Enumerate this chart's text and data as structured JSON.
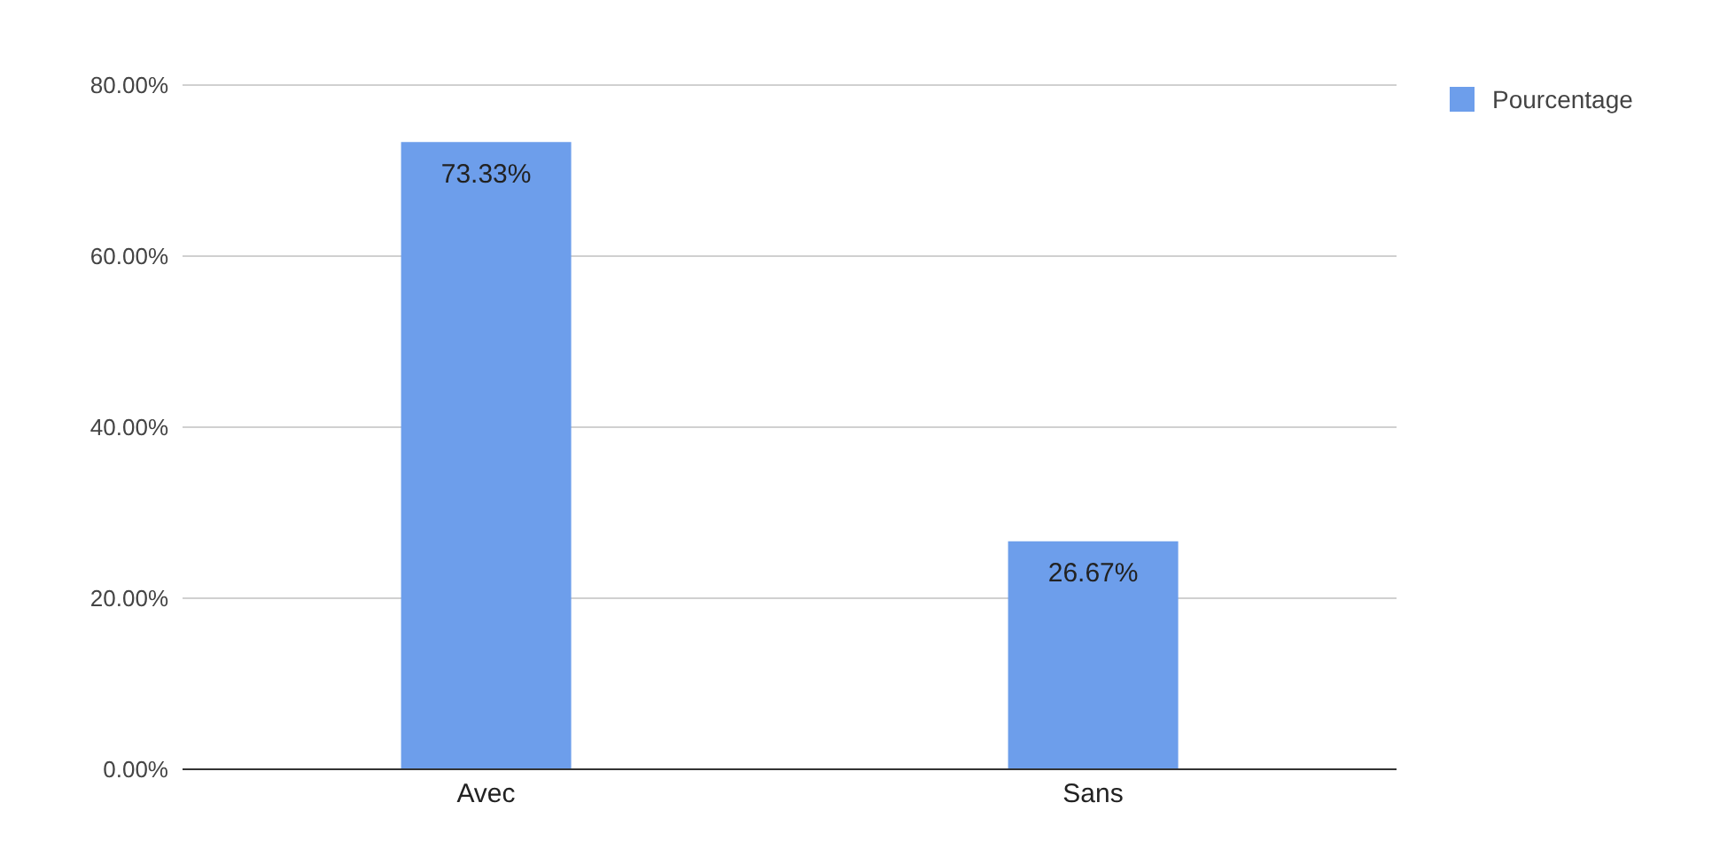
{
  "chart_data": {
    "type": "bar",
    "categories": [
      "Avec",
      "Sans"
    ],
    "series": [
      {
        "name": "Pourcentage",
        "color": "#6d9eeb",
        "values": [
          73.33,
          26.67
        ],
        "value_labels": [
          "73.33%",
          "26.67%"
        ]
      }
    ],
    "ylim": [
      0,
      80
    ],
    "yticks": [
      {
        "value": 0,
        "label": "0.00%"
      },
      {
        "value": 20,
        "label": "20.00%"
      },
      {
        "value": 40,
        "label": "40.00%"
      },
      {
        "value": 60,
        "label": "60.00%"
      },
      {
        "value": 80,
        "label": "80.00%"
      }
    ],
    "grid": "y",
    "legend": "top right"
  }
}
